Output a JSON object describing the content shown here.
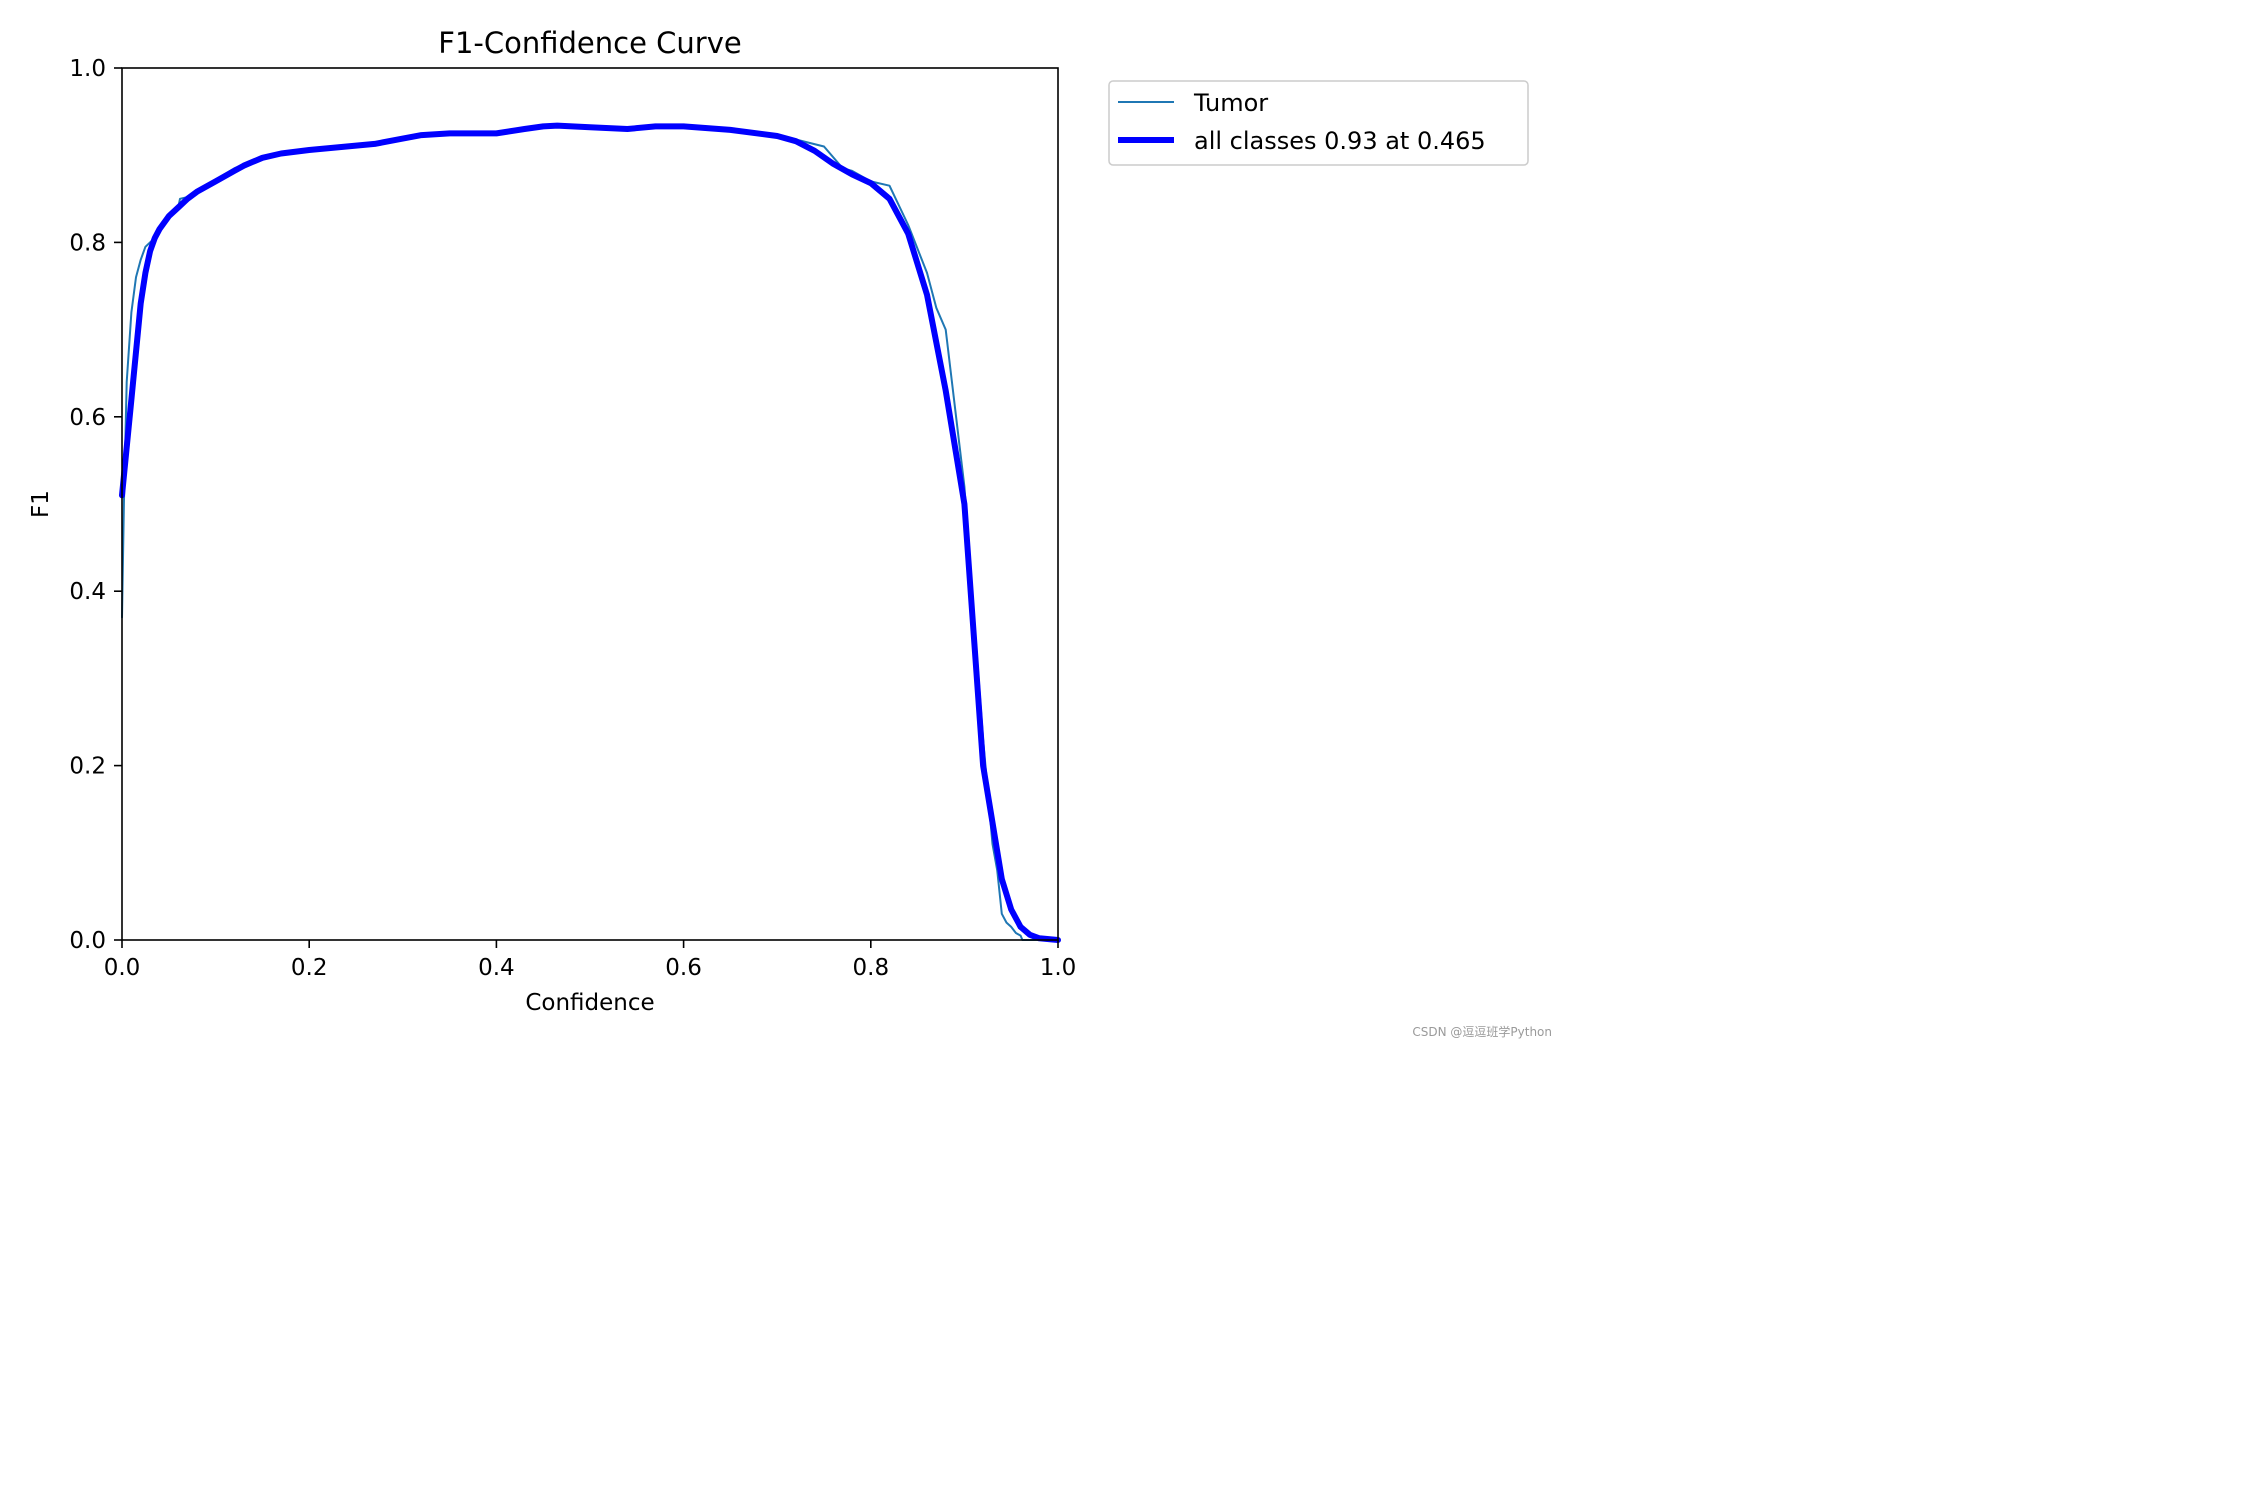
{
  "chart_data": {
    "type": "line",
    "title": "F1-Confidence Curve",
    "xlabel": "Confidence",
    "ylabel": "F1",
    "xlim": [
      0.0,
      1.0
    ],
    "ylim": [
      0.0,
      1.0
    ],
    "xticks": [
      "0.0",
      "0.2",
      "0.4",
      "0.6",
      "0.8",
      "1.0"
    ],
    "yticks": [
      "0.0",
      "0.2",
      "0.4",
      "0.6",
      "0.8",
      "1.0"
    ],
    "grid": false,
    "legend_position": "outside-top-right",
    "series": [
      {
        "name": "Tumor",
        "color": "#1f77b4",
        "x": [
          0.0,
          0.002,
          0.005,
          0.01,
          0.015,
          0.02,
          0.025,
          0.03,
          0.035,
          0.04,
          0.05,
          0.06,
          0.062,
          0.07,
          0.08,
          0.1,
          0.12,
          0.15,
          0.2,
          0.25,
          0.3,
          0.35,
          0.4,
          0.45,
          0.5,
          0.55,
          0.585,
          0.6,
          0.65,
          0.7,
          0.72,
          0.75,
          0.77,
          0.78,
          0.8,
          0.82,
          0.84,
          0.86,
          0.87,
          0.88,
          0.9,
          0.92,
          0.93,
          0.935,
          0.94,
          0.945,
          0.95,
          0.955,
          0.96,
          0.962,
          0.97,
          0.98,
          1.0
        ],
        "y": [
          0.37,
          0.5,
          0.64,
          0.72,
          0.76,
          0.78,
          0.795,
          0.8,
          0.805,
          0.815,
          0.83,
          0.84,
          0.85,
          0.852,
          0.86,
          0.872,
          0.885,
          0.898,
          0.905,
          0.91,
          0.92,
          0.925,
          0.924,
          0.933,
          0.932,
          0.93,
          0.935,
          0.932,
          0.93,
          0.922,
          0.918,
          0.91,
          0.885,
          0.882,
          0.87,
          0.865,
          0.82,
          0.765,
          0.725,
          0.7,
          0.52,
          0.23,
          0.11,
          0.08,
          0.03,
          0.02,
          0.015,
          0.008,
          0.005,
          0.0,
          0.0,
          0.0,
          0.0
        ]
      },
      {
        "name": "all classes 0.93 at 0.465",
        "color": "#0000ff",
        "x": [
          0.0,
          0.01,
          0.02,
          0.025,
          0.03,
          0.035,
          0.04,
          0.05,
          0.06,
          0.07,
          0.08,
          0.1,
          0.12,
          0.13,
          0.15,
          0.17,
          0.2,
          0.23,
          0.27,
          0.3,
          0.32,
          0.35,
          0.4,
          0.43,
          0.45,
          0.465,
          0.5,
          0.54,
          0.57,
          0.6,
          0.65,
          0.7,
          0.72,
          0.74,
          0.76,
          0.78,
          0.8,
          0.82,
          0.84,
          0.86,
          0.88,
          0.9,
          0.92,
          0.94,
          0.95,
          0.96,
          0.97,
          0.98,
          1.0
        ],
        "y": [
          0.51,
          0.62,
          0.73,
          0.765,
          0.79,
          0.805,
          0.815,
          0.83,
          0.84,
          0.85,
          0.858,
          0.87,
          0.882,
          0.888,
          0.897,
          0.902,
          0.906,
          0.909,
          0.913,
          0.919,
          0.923,
          0.925,
          0.925,
          0.93,
          0.933,
          0.934,
          0.932,
          0.93,
          0.933,
          0.933,
          0.929,
          0.922,
          0.916,
          0.905,
          0.89,
          0.878,
          0.868,
          0.85,
          0.81,
          0.74,
          0.63,
          0.5,
          0.2,
          0.07,
          0.035,
          0.015,
          0.006,
          0.002,
          0.0
        ]
      }
    ]
  },
  "watermark": "CSDN @逗逗班学Python"
}
